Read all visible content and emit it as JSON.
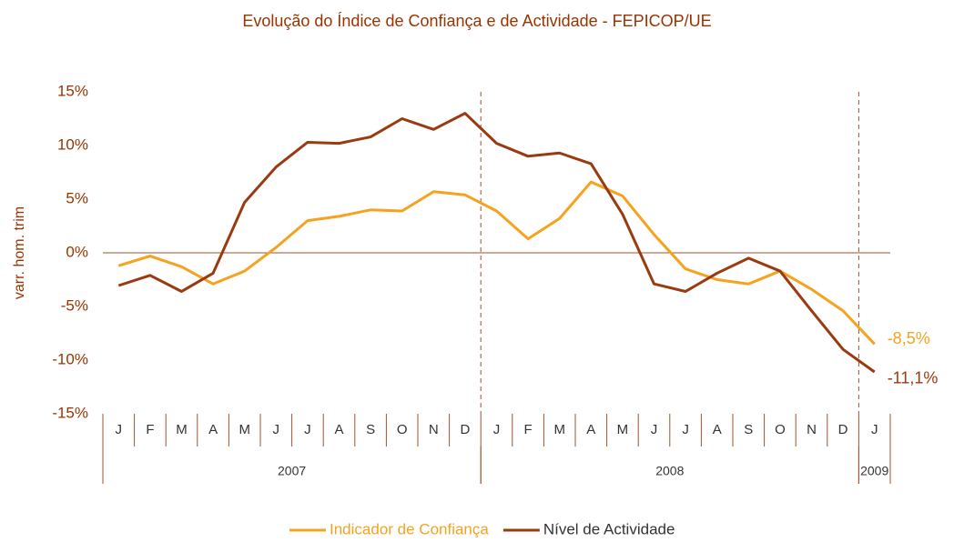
{
  "chart_data": {
    "type": "line",
    "title": "Evolução do Índice de Confiança e de Actividade - FEPICOP/UE",
    "y_label": "varr. hom. trim",
    "categories": [
      "J",
      "F",
      "M",
      "A",
      "M",
      "J",
      "J",
      "A",
      "S",
      "O",
      "N",
      "D",
      "J",
      "F",
      "M",
      "A",
      "M",
      "J",
      "J",
      "A",
      "S",
      "O",
      "N",
      "D",
      "J"
    ],
    "year_groups": [
      {
        "label": "2007",
        "count": 12
      },
      {
        "label": "2008",
        "count": 12
      },
      {
        "label": "2009",
        "count": 1
      }
    ],
    "series": [
      {
        "name": "Indicador de Confiança",
        "color": "#f5a31f",
        "values": [
          -1.2,
          -0.3,
          -1.3,
          -2.9,
          -1.7,
          0.5,
          3.0,
          3.4,
          4.0,
          3.9,
          5.7,
          5.4,
          3.9,
          1.3,
          3.2,
          6.6,
          5.3,
          1.7,
          -1.5,
          -2.5,
          -2.9,
          -1.7,
          -3.4,
          -5.4,
          -8.5
        ],
        "value_labels": [
          null,
          null,
          null,
          null,
          null,
          null,
          null,
          null,
          null,
          null,
          null,
          null,
          null,
          null,
          null,
          null,
          null,
          null,
          null,
          null,
          null,
          null,
          null,
          null,
          "-8,5%"
        ]
      },
      {
        "name": "Nível de Actividade",
        "color": "#9a3a10",
        "values": [
          -3.05,
          -2.1,
          -3.6,
          -1.9,
          4.7,
          8.0,
          10.3,
          10.2,
          10.8,
          12.5,
          11.5,
          13.0,
          10.2,
          9.0,
          9.3,
          8.3,
          3.6,
          -2.9,
          -3.6,
          -1.9,
          -0.5,
          -1.7,
          -5.4,
          -9.0,
          -11.1
        ],
        "value_labels": [
          null,
          null,
          null,
          null,
          null,
          null,
          null,
          null,
          null,
          null,
          null,
          null,
          null,
          null,
          null,
          null,
          null,
          null,
          null,
          null,
          null,
          null,
          null,
          null,
          "-11,1%"
        ]
      }
    ],
    "ylim": [
      -15,
      15
    ],
    "yticks": [
      {
        "value": -15,
        "label": "-15%"
      },
      {
        "value": -10,
        "label": "-10%"
      },
      {
        "value": -5,
        "label": "-5%"
      },
      {
        "value": 0,
        "label": "0%"
      },
      {
        "value": 5,
        "label": "5%"
      },
      {
        "value": 10,
        "label": "10%"
      },
      {
        "value": 15,
        "label": "15%"
      }
    ],
    "legend": "bottom"
  }
}
